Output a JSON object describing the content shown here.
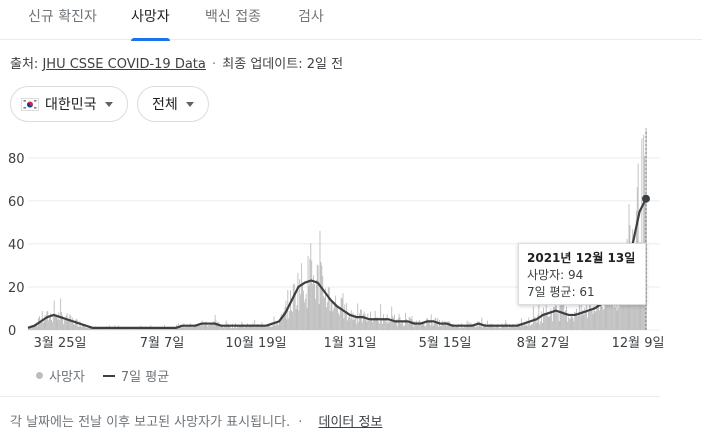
{
  "tabs": [
    {
      "label": "신규 확진자",
      "active": false
    },
    {
      "label": "사망자",
      "active": true
    },
    {
      "label": "백신 접종",
      "active": false
    },
    {
      "label": "검사",
      "active": false
    }
  ],
  "source": {
    "prefix": "출처:",
    "link": "JHU CSSE COVID-19 Data",
    "updated": "최종 업데이트: 2일 전"
  },
  "filters": {
    "region": "대한민국",
    "scope": "전체"
  },
  "tooltip": {
    "date": "2021년 12월 13일",
    "deaths": "사망자: 94",
    "avg": "7일 평균: 61"
  },
  "legend": {
    "daily": "사망자",
    "avg": "7일 평균"
  },
  "footer": {
    "note": "각 날짜에는 전날 이후 보고된 사망자가 표시됩니다.",
    "link": "데이터 정보"
  },
  "colors": {
    "accent": "#1a73e8",
    "bars": "#bdbdbd",
    "avg_line": "#3c4043"
  },
  "chart_data": {
    "type": "bar",
    "x_start": "2020-03-01",
    "x_end": "2021-12-13",
    "ylim": [
      0,
      92
    ],
    "yticks": [
      0,
      20,
      40,
      60,
      80
    ],
    "xticks": [
      "3월 25일",
      "7월 7일",
      "10월 19일",
      "1월 31일",
      "5월 15일",
      "8월 27일",
      "12월 9일"
    ],
    "series": [
      {
        "name": "사망자",
        "kind": "bar"
      },
      {
        "name": "7일 평균",
        "kind": "line"
      }
    ],
    "weekly_avg": [
      1,
      2,
      4,
      6,
      7,
      6,
      5,
      4,
      3,
      2,
      1,
      1,
      1,
      1,
      1,
      1,
      1,
      1,
      1,
      1,
      1,
      1,
      1,
      1,
      2,
      2,
      2,
      3,
      3,
      3,
      2,
      2,
      2,
      2,
      2,
      2,
      2,
      2,
      3,
      4,
      8,
      14,
      20,
      22,
      23,
      22,
      18,
      14,
      11,
      9,
      7,
      6,
      6,
      5,
      5,
      5,
      5,
      4,
      4,
      4,
      3,
      3,
      4,
      4,
      3,
      3,
      2,
      2,
      2,
      2,
      3,
      2,
      2,
      2,
      2,
      2,
      2,
      3,
      4,
      5,
      7,
      8,
      9,
      8,
      7,
      7,
      8,
      9,
      10,
      12,
      14,
      17,
      22,
      31,
      41,
      55,
      61
    ],
    "peak_daily": 94,
    "highlighted": {
      "date": "2021-12-13",
      "deaths": 94,
      "avg7": 61
    }
  }
}
